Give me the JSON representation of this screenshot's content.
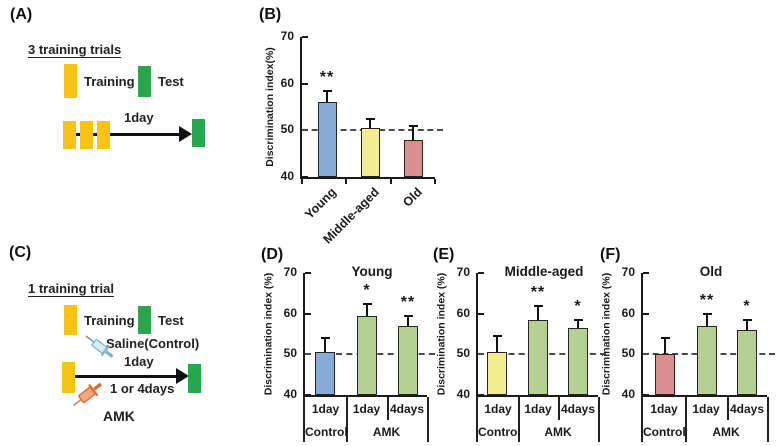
{
  "figure": {
    "panelA": {
      "label": "(A)",
      "heading": "3 training trials",
      "training_label": "Training",
      "test_label": "Test",
      "arrow_label": "1day"
    },
    "panelC": {
      "label": "(C)",
      "heading": "1 training trial",
      "training_label": "Training",
      "test_label": "Test",
      "saline_label": "Saline(Control)",
      "top_arrow_label": "1day",
      "bottom_arrow_label": "1 or 4days",
      "amk_label": "AMK"
    }
  },
  "colors": {
    "training_yellow": "#f6c316",
    "test_green": "#28a74e",
    "bar_blue": "#88abd7",
    "bar_yellow": "#f1ef92",
    "bar_red": "#d8908e",
    "bar_green": "#b6cf93",
    "saline_syringe_body": "#d6edf8",
    "saline_syringe_outline": "#7fb3d5",
    "amk_syringe_body": "#f4a97c",
    "amk_syringe_outline": "#d96f35",
    "axis_color": "#1a1a1a",
    "dashed_line_color": "#4a4a4a"
  },
  "chart_data": [
    {
      "id": "B",
      "type": "bar",
      "panel_label": "(B)",
      "title": "",
      "ylabel": "Discrimination index(%)",
      "ylim": [
        40,
        70
      ],
      "yticks": [
        40,
        50,
        60,
        70
      ],
      "dashed_line_y": 50,
      "categories": [
        "Young",
        "Middle-aged",
        "Old"
      ],
      "values": [
        56,
        50.5,
        48
      ],
      "errors": [
        2.5,
        2,
        3
      ],
      "significance": [
        "**",
        "",
        ""
      ],
      "bar_colors": [
        "#88abd7",
        "#f1ef92",
        "#d8908e"
      ],
      "x_label_style": "rotated"
    },
    {
      "id": "D",
      "type": "bar",
      "panel_label": "(D)",
      "title": "Young",
      "ylabel": "Discrimination index (%)",
      "ylim": [
        40,
        70
      ],
      "yticks": [
        40,
        50,
        60,
        70
      ],
      "dashed_line_y": 50,
      "categories": [
        "1day Control",
        "1day AMK",
        "4days AMK"
      ],
      "values": [
        50.5,
        59.5,
        57
      ],
      "errors": [
        3.5,
        3,
        2.5
      ],
      "significance": [
        "",
        "*",
        "**"
      ],
      "bar_colors": [
        "#88abd7",
        "#b6cf93",
        "#b6cf93"
      ],
      "x_table": {
        "row1": [
          "1day",
          "1day",
          "4days"
        ],
        "row2": [
          "Control",
          "AMK"
        ]
      }
    },
    {
      "id": "E",
      "type": "bar",
      "panel_label": "(E)",
      "title": "Middle-aged",
      "ylabel": "Discrimination index (%)",
      "ylim": [
        40,
        70
      ],
      "yticks": [
        40,
        50,
        60,
        70
      ],
      "dashed_line_y": 50,
      "categories": [
        "1day Control",
        "1day AMK",
        "4days AMK"
      ],
      "values": [
        50.5,
        58.5,
        56.5
      ],
      "errors": [
        4,
        3.5,
        2
      ],
      "significance": [
        "",
        "**",
        "*"
      ],
      "bar_colors": [
        "#f1ef92",
        "#b6cf93",
        "#b6cf93"
      ],
      "x_table": {
        "row1": [
          "1day",
          "1day",
          "4days"
        ],
        "row2": [
          "Control",
          "AMK"
        ]
      }
    },
    {
      "id": "F",
      "type": "bar",
      "panel_label": "(F)",
      "title": "Old",
      "ylabel": "Discrimination index (%)",
      "ylim": [
        40,
        70
      ],
      "yticks": [
        40,
        50,
        60,
        70
      ],
      "dashed_line_y": 50,
      "categories": [
        "1day Control",
        "1day AMK",
        "4days AMK"
      ],
      "values": [
        50,
        57,
        56
      ],
      "errors": [
        4,
        3,
        2.5
      ],
      "significance": [
        "",
        "**",
        "*"
      ],
      "bar_colors": [
        "#d8908e",
        "#b6cf93",
        "#b6cf93"
      ],
      "x_table": {
        "row1": [
          "1day",
          "1day",
          "4days"
        ],
        "row2": [
          "Control",
          "AMK"
        ]
      }
    }
  ]
}
